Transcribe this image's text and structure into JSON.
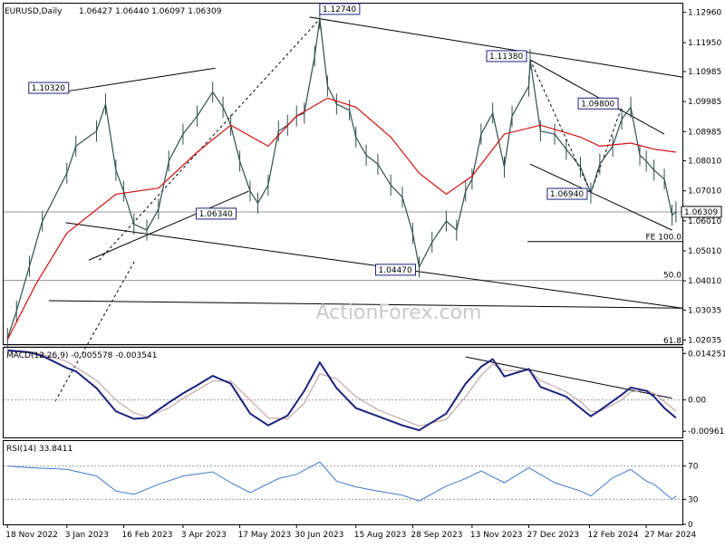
{
  "header": {
    "symbol": "EURUSD,Daily",
    "ohlc": "1.06427 1.06440 1.06097 1.06309"
  },
  "watermark": "ActionForex.com",
  "colors": {
    "price": "#2f4f4f",
    "ma": "#d01010",
    "macd": "#1a237e",
    "signal": "#c7a7a7",
    "rsi": "#3a78c8",
    "current": "#2a4a9a",
    "trend": "#000000"
  },
  "chart_data": [
    {
      "type": "line",
      "title": "EURUSD,Daily",
      "pane": "price",
      "ylim": [
        1.019,
        1.1325
      ],
      "y_ticks": [
        "1.12960",
        "1.11950",
        "1.10985",
        "1.09985",
        "1.08985",
        "1.08010",
        "1.07010",
        "1.06010",
        "1.05010",
        "1.04010",
        "1.03035",
        "1.02035"
      ],
      "x_ticks": [
        "18 Nov 2022",
        "3 Jan 2023",
        "16 Feb 2023",
        "3 Apr 2023",
        "17 May 2023",
        "30 Jun 2023",
        "15 Aug 2023",
        "28 Sep 2023",
        "13 Nov 2023",
        "27 Dec 2023",
        "12 Feb 2024",
        "27 Mar 2024"
      ],
      "series": [
        {
          "x": [
            "2022-11-18",
            "2022-11-25",
            "2022-12-05",
            "2022-12-15",
            "2023-01-03",
            "2023-01-10",
            "2023-01-26",
            "2023-02-02",
            "2023-02-10",
            "2023-02-16",
            "2023-02-24",
            "2023-03-06",
            "2023-03-15",
            "2023-03-23",
            "2023-04-03",
            "2023-04-14",
            "2023-04-26",
            "2023-05-04",
            "2023-05-10",
            "2023-05-17",
            "2023-05-25",
            "2023-05-31",
            "2023-06-08",
            "2023-06-16",
            "2023-06-23",
            "2023-06-30",
            "2023-07-06",
            "2023-07-14",
            "2023-07-18",
            "2023-07-24",
            "2023-07-31",
            "2023-08-10",
            "2023-08-15",
            "2023-08-23",
            "2023-09-01",
            "2023-09-11",
            "2023-09-20",
            "2023-09-28",
            "2023-10-03",
            "2023-10-13",
            "2023-10-24",
            "2023-11-01",
            "2023-11-08",
            "2023-11-13",
            "2023-11-20",
            "2023-11-29",
            "2023-12-08",
            "2023-12-14",
            "2023-12-27",
            "2023-12-28",
            "2024-01-05",
            "2024-01-16",
            "2024-01-25",
            "2024-02-05",
            "2024-02-13",
            "2024-02-20",
            "2024-03-01",
            "2024-03-08",
            "2024-03-15",
            "2024-03-22",
            "2024-03-27",
            "2024-04-02",
            "2024-04-10",
            "2024-04-16",
            "2024-04-19"
          ],
          "values": [
            1.021,
            1.03,
            1.045,
            1.06,
            1.076,
            1.085,
            1.09,
            1.099,
            1.077,
            1.07,
            1.059,
            1.057,
            1.064,
            1.08,
            1.089,
            1.095,
            1.103,
            1.098,
            1.092,
            1.08,
            1.07,
            1.066,
            1.072,
            1.09,
            1.092,
            1.095,
            1.096,
            1.115,
            1.1274,
            1.105,
            1.099,
            1.097,
            1.088,
            1.082,
            1.079,
            1.072,
            1.068,
            1.056,
            1.0447,
            1.053,
            1.06,
            1.057,
            1.07,
            1.074,
            1.089,
            1.096,
            1.078,
            1.095,
            1.105,
            1.1138,
            1.09,
            1.089,
            1.084,
            1.078,
            1.0694,
            1.079,
            1.085,
            1.094,
            1.098,
            1.082,
            1.08,
            1.077,
            1.074,
            1.062,
            1.0631
          ],
          "color": "#2f4f4f"
        },
        {
          "x": [
            "2022-11-18",
            "2022-12-10",
            "2023-01-03",
            "2023-02-10",
            "2023-03-15",
            "2023-04-14",
            "2023-05-10",
            "2023-06-08",
            "2023-06-30",
            "2023-07-24",
            "2023-08-15",
            "2023-09-11",
            "2023-10-03",
            "2023-10-24",
            "2023-11-13",
            "2023-12-08",
            "2024-01-05",
            "2024-02-05",
            "2024-02-20",
            "2024-03-15",
            "2024-04-02",
            "2024-04-19"
          ],
          "values": [
            1.0205,
            1.039,
            1.056,
            1.069,
            1.071,
            1.083,
            1.092,
            1.085,
            1.095,
            1.101,
            1.098,
            1.088,
            1.076,
            1.069,
            1.075,
            1.089,
            1.092,
            1.088,
            1.085,
            1.086,
            1.084,
            1.083
          ],
          "color": "#d01010"
        }
      ],
      "price_labels": [
        "1.12740",
        "1.11380",
        "1.10320",
        "1.09800",
        "1.06940",
        "1.06340",
        "1.04470"
      ],
      "current_price": "1.06309",
      "current_value": 1.06309,
      "fib_levels": [
        {
          "label": "FE 100.0",
          "value": 1.0532
        },
        {
          "label": "50.0",
          "value": 1.0403
        },
        {
          "label": "61.8",
          "value": 1.0184
        }
      ],
      "grid": false
    },
    {
      "type": "line",
      "pane": "macd",
      "title": "MACD(12,26,9) -0.005578 -0.003541",
      "ylim": [
        -0.0115,
        0.016
      ],
      "y_ticks": [
        "0.014251",
        "0.00",
        "-0.009617"
      ],
      "x": [
        "2022-11-18",
        "2022-12-05",
        "2022-12-15",
        "2023-01-03",
        "2023-01-10",
        "2023-01-26",
        "2023-02-10",
        "2023-02-24",
        "2023-03-06",
        "2023-03-23",
        "2023-04-03",
        "2023-04-14",
        "2023-04-26",
        "2023-05-10",
        "2023-05-25",
        "2023-06-08",
        "2023-06-23",
        "2023-07-06",
        "2023-07-18",
        "2023-07-31",
        "2023-08-15",
        "2023-09-01",
        "2023-09-20",
        "2023-10-03",
        "2023-10-24",
        "2023-11-08",
        "2023-11-20",
        "2023-11-29",
        "2023-12-08",
        "2023-12-27",
        "2024-01-05",
        "2024-01-25",
        "2024-02-05",
        "2024-02-13",
        "2024-02-20",
        "2024-03-08",
        "2024-03-15",
        "2024-03-27",
        "2024-04-02",
        "2024-04-10",
        "2024-04-19"
      ],
      "series": [
        {
          "name": "MACD",
          "color": "#1a237e",
          "values": [
            0.0152,
            0.0146,
            0.0135,
            0.0098,
            0.0088,
            0.0036,
            -0.0035,
            -0.0058,
            -0.0055,
            -0.0008,
            0.002,
            0.0045,
            0.0074,
            0.005,
            -0.0042,
            -0.0078,
            -0.0048,
            0.0028,
            0.0115,
            0.0036,
            -0.0025,
            -0.005,
            -0.0078,
            -0.0093,
            -0.0042,
            0.005,
            0.0102,
            0.0125,
            0.0072,
            0.0095,
            0.004,
            0.001,
            -0.0025,
            -0.005,
            -0.0032,
            0.0016,
            0.0038,
            0.0028,
            0.001,
            -0.0025,
            -0.0055
          ]
        },
        {
          "name": "Signal",
          "color": "#c7a7a7",
          "values": [
            0.0148,
            0.0147,
            0.014,
            0.0118,
            0.01,
            0.006,
            0.0,
            -0.004,
            -0.0052,
            -0.0025,
            0.0005,
            0.003,
            0.0058,
            0.0058,
            0.0,
            -0.0055,
            -0.0058,
            -0.001,
            0.008,
            0.0065,
            0.001,
            -0.003,
            -0.006,
            -0.008,
            -0.006,
            0.001,
            0.0075,
            0.011,
            0.009,
            0.009,
            0.006,
            0.0025,
            -0.0005,
            -0.0035,
            -0.0035,
            0.0,
            0.0025,
            0.003,
            0.002,
            -0.0005,
            -0.0035
          ]
        }
      ]
    },
    {
      "type": "line",
      "pane": "rsi",
      "title": "RSI(14) 33.8411",
      "ylim": [
        0,
        100
      ],
      "y_ticks": [
        "70",
        "30",
        "0"
      ],
      "reference_lines": [
        70,
        30
      ],
      "x": [
        "2022-11-18",
        "2022-12-05",
        "2023-01-03",
        "2023-01-26",
        "2023-02-10",
        "2023-02-24",
        "2023-03-15",
        "2023-04-03",
        "2023-04-26",
        "2023-05-10",
        "2023-05-25",
        "2023-06-16",
        "2023-06-30",
        "2023-07-18",
        "2023-07-31",
        "2023-08-15",
        "2023-09-01",
        "2023-09-20",
        "2023-10-03",
        "2023-10-24",
        "2023-11-08",
        "2023-11-20",
        "2023-12-08",
        "2023-12-27",
        "2024-01-16",
        "2024-02-05",
        "2024-02-13",
        "2024-03-01",
        "2024-03-15",
        "2024-03-27",
        "2024-04-02",
        "2024-04-16",
        "2024-04-19"
      ],
      "series": [
        {
          "name": "RSI",
          "color": "#3a78c8",
          "values": [
            70,
            68,
            66,
            58,
            40,
            36,
            48,
            58,
            63,
            50,
            38,
            55,
            60,
            75,
            52,
            45,
            40,
            35,
            28,
            46,
            55,
            64,
            50,
            68,
            50,
            40,
            34,
            56,
            66,
            52,
            48,
            30,
            34
          ]
        }
      ]
    }
  ],
  "x_axis_labels": [
    "18 Nov 2022",
    "3 Jan 2023",
    "16 Feb 2023",
    "3 Apr 2023",
    "17 May 2023",
    "30 Jun 2023",
    "15 Aug 2023",
    "28 Sep 2023",
    "13 Nov 2023",
    "27 Dec 2023",
    "12 Feb 2024",
    "27 Mar 2024"
  ]
}
